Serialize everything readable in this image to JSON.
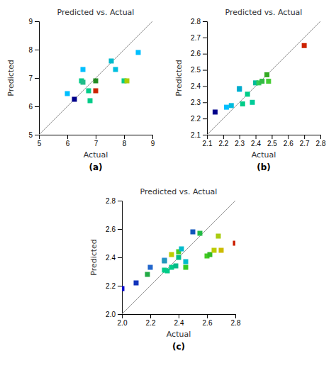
{
  "chart_data": [
    {
      "type": "scatter",
      "title": "Predicted vs. Actual",
      "xlabel": "Actual",
      "ylabel": "Predicted",
      "annotations": [
        "(a)"
      ],
      "marker": "square",
      "grid": false,
      "xlim": [
        5,
        9
      ],
      "ylim": [
        5,
        9
      ],
      "xticks": [
        5,
        6,
        7,
        8,
        9
      ],
      "yticks": [
        5,
        6,
        7,
        8,
        9
      ],
      "x": [
        6.0,
        6.25,
        6.5,
        6.55,
        6.55,
        6.75,
        6.8,
        7.0,
        7.0,
        7.55,
        7.7,
        8.0,
        8.1,
        8.5
      ],
      "values": [
        6.45,
        6.25,
        6.9,
        6.85,
        7.3,
        6.55,
        6.2,
        6.9,
        6.55,
        7.6,
        7.3,
        6.9,
        6.9,
        7.9
      ],
      "colors": [
        "#00BFFF",
        "#00008B",
        "#00CC88",
        "#22BB88",
        "#00BFFF",
        "#00CC88",
        "#00CC88",
        "#228B22",
        "#CC2200",
        "#00BBCC",
        "#00BFDF",
        "#00CC88",
        "#AACC00",
        "#00BFFF"
      ]
    },
    {
      "type": "scatter",
      "title": "Predicted vs. Actual",
      "xlabel": "Actual",
      "ylabel": "Predicted",
      "annotations": [
        "(b)"
      ],
      "marker": "square",
      "grid": false,
      "xlim": [
        2.1,
        2.8
      ],
      "ylim": [
        2.1,
        2.8
      ],
      "xticks": [
        2.1,
        2.2,
        2.3,
        2.4,
        2.5,
        2.6,
        2.7,
        2.8
      ],
      "yticks": [
        2.1,
        2.2,
        2.3,
        2.4,
        2.5,
        2.6,
        2.7,
        2.8
      ],
      "x": [
        2.15,
        2.22,
        2.25,
        2.3,
        2.3,
        2.32,
        2.35,
        2.38,
        2.4,
        2.42,
        2.44,
        2.47,
        2.48,
        2.7
      ],
      "values": [
        2.24,
        2.27,
        2.28,
        2.38,
        2.385,
        2.29,
        2.35,
        2.3,
        2.42,
        2.42,
        2.43,
        2.47,
        2.43,
        2.65
      ],
      "colors": [
        "#00008B",
        "#00BFFF",
        "#00BBDD",
        "#00BBDD",
        "#00AACC",
        "#00CC88",
        "#00CC88",
        "#00CC99",
        "#00BB99",
        "#33CC55",
        "#33BB44",
        "#33AA22",
        "#44CC33",
        "#CC2200"
      ]
    },
    {
      "type": "scatter",
      "title": "Predicted vs. Actual",
      "xlabel": "Actual",
      "ylabel": "Predicted",
      "annotations": [
        "(c)"
      ],
      "marker": "square",
      "grid": false,
      "xlim": [
        2.0,
        2.8
      ],
      "ylim": [
        2.0,
        2.8
      ],
      "xticks": [
        {
          "value": 2.0,
          "label": "2.0"
        },
        2.2,
        2.4,
        2.6,
        2.8
      ],
      "yticks": [
        {
          "value": 2.0,
          "label": "2.0"
        },
        2.2,
        2.4,
        2.6,
        2.8
      ],
      "x": [
        2.0,
        2.1,
        2.18,
        2.2,
        2.3,
        2.3,
        2.3,
        2.32,
        2.35,
        2.35,
        2.38,
        2.4,
        2.4,
        2.42,
        2.45,
        2.45,
        2.5,
        2.55,
        2.6,
        2.62,
        2.65,
        2.68,
        2.7,
        2.8
      ],
      "values": [
        2.18,
        2.22,
        2.28,
        2.33,
        2.38,
        2.375,
        2.31,
        2.305,
        2.42,
        2.33,
        2.34,
        2.44,
        2.4,
        2.46,
        2.37,
        2.33,
        2.58,
        2.57,
        2.41,
        2.42,
        2.45,
        2.55,
        2.45,
        2.5
      ],
      "colors": [
        "#0000CC",
        "#1133BB",
        "#22AA44",
        "#2266CC",
        "#3388DD",
        "#2299BB",
        "#00CC88",
        "#00CC88",
        "#BBCC00",
        "#00CC88",
        "#00BB88",
        "#44CC22",
        "#00BB88",
        "#00BBCC",
        "#00BBCC",
        "#33CC22",
        "#1155BB",
        "#22BB44",
        "#44CC22",
        "#33BB22",
        "#BBCC00",
        "#AACC11",
        "#CCBB00",
        "#CC2200"
      ]
    }
  ]
}
